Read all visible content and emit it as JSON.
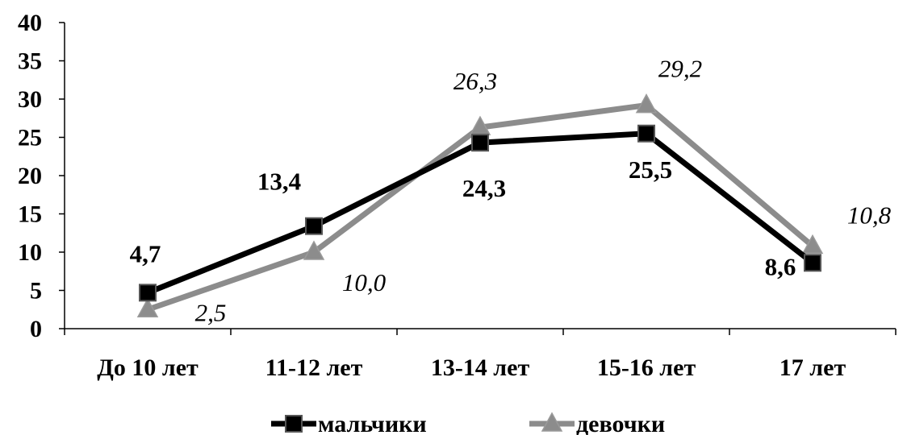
{
  "chart_data": {
    "type": "line",
    "categories": [
      "До 10 лет",
      "11-12 лет",
      "13-14 лет",
      "15-16 лет",
      "17 лет"
    ],
    "ylim": [
      0,
      40
    ],
    "yticks": [
      0,
      5,
      10,
      15,
      20,
      25,
      30,
      35,
      40
    ],
    "grid": false,
    "legend_position": "bottom",
    "series": [
      {
        "name": "мальчики",
        "values": [
          4.7,
          13.4,
          24.3,
          25.5,
          8.6
        ],
        "labels": [
          "4,7",
          "13,4",
          "24,3",
          "25,5",
          "8,6"
        ],
        "color": "#000000",
        "marker": "square",
        "label_style": "bold"
      },
      {
        "name": "девочки",
        "values": [
          2.5,
          10.0,
          26.3,
          29.2,
          10.8
        ],
        "labels": [
          "2,5",
          "10,0",
          "26,3",
          "29,2",
          "10,8"
        ],
        "color": "#8c8c8c",
        "marker": "triangle",
        "label_style": "italic"
      }
    ]
  }
}
